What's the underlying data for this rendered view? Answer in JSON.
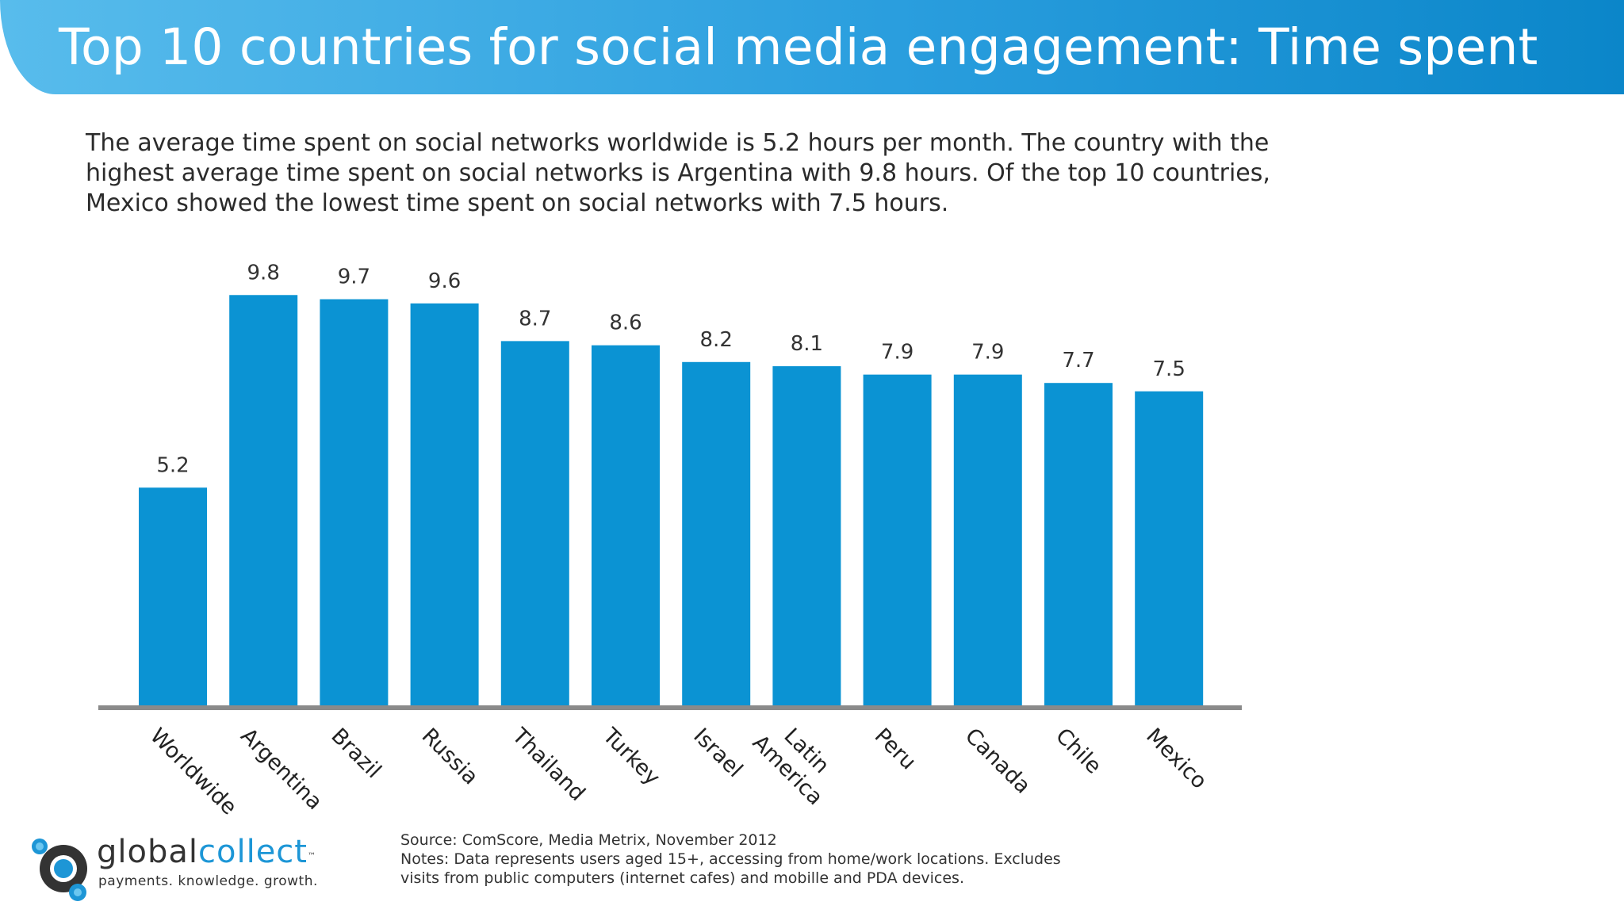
{
  "header": {
    "title": "Top 10 countries for social media engagement: Time spent"
  },
  "summary": {
    "lines": [
      "The average time spent on social networks worldwide is 5.2 hours per month. The country with the",
      "highest average time spent on social networks is Argentina with 9.8 hours. Of the top 10 countries,",
      "Mexico showed the lowest time spent on social networks with 7.5 hours."
    ]
  },
  "chart_data": {
    "type": "bar",
    "categories": [
      "Worldwide",
      "Argentina",
      "Brazil",
      "Russia",
      "Thailand",
      "Turkey",
      "Israel",
      "Latin America",
      "Peru",
      "Canada",
      "Chile",
      "Mexico"
    ],
    "category_lines": [
      [
        "Worldwide"
      ],
      [
        "Argentina"
      ],
      [
        "Brazil"
      ],
      [
        "Russia"
      ],
      [
        "Thailand"
      ],
      [
        "Turkey"
      ],
      [
        "Israel"
      ],
      [
        "Latin",
        "America"
      ],
      [
        "Peru"
      ],
      [
        "Canada"
      ],
      [
        "Chile"
      ],
      [
        "Mexico"
      ]
    ],
    "values": [
      5.2,
      9.8,
      9.7,
      9.6,
      8.7,
      8.6,
      8.2,
      8.1,
      7.9,
      7.9,
      7.7,
      7.5
    ],
    "value_labels": [
      "5.2",
      "9.8",
      "9.7",
      "9.6",
      "8.7",
      "8.6",
      "8.2",
      "8.1",
      "7.9",
      "7.9",
      "7.7",
      "7.5"
    ],
    "title": "",
    "xlabel": "",
    "ylabel": "",
    "ylim": [
      0,
      10.6
    ],
    "grid": false,
    "legend": "none",
    "bar_color": "#0b93d3",
    "axis_color": "#8a8a8a"
  },
  "logo": {
    "word_first": "global",
    "word_second": "collect",
    "trademark": "™",
    "tagline": "payments. knowledge. growth."
  },
  "notes": {
    "source": "Source: ComScore, Media Metrix, November 2012",
    "lines": [
      "Notes: Data represents users aged 15+, accessing from home/work locations. Excludes",
      "visits from public computers (internet cafes) and mobille and PDA devices."
    ]
  },
  "colors": {
    "header_start": "#58bcec",
    "header_end": "#0b86c9",
    "logo_blue": "#1d96d6",
    "logo_dark": "#333333"
  }
}
